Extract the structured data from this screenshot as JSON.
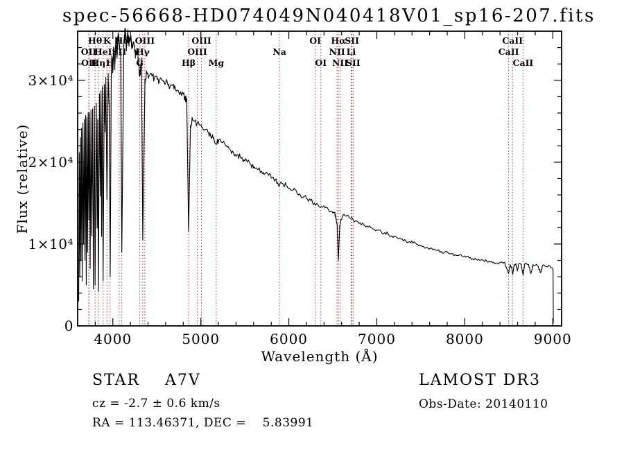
{
  "title": "spec-56668-HD074049N040418V01_sp16-207.fits",
  "x_axis": {
    "label": "Wavelength (Å)",
    "ticks": [
      {
        "value": 4000,
        "label": "4000"
      },
      {
        "value": 5000,
        "label": "5000"
      },
      {
        "value": 6000,
        "label": "6000"
      },
      {
        "value": 7000,
        "label": "7000"
      },
      {
        "value": 8000,
        "label": "8000"
      },
      {
        "value": 9000,
        "label": "9000"
      }
    ]
  },
  "y_axis": {
    "label": "Flux (relative)",
    "ticks": [
      {
        "value": 0,
        "label": "0"
      },
      {
        "value": 10000,
        "label": "1×10⁴"
      },
      {
        "value": 20000,
        "label": "2×10⁴"
      },
      {
        "value": 30000,
        "label": "3×10⁴"
      }
    ]
  },
  "annotations": {
    "classification": "STAR    A7V",
    "cz": "cz = -2.7 ± 0.6 km/s",
    "radec": "RA = 113.46371, DEC =    5.83991",
    "survey": "LAMOST DR3",
    "obs_date": "Obs-Date: 20140110"
  },
  "colors": {
    "spectrum": "#000000",
    "line_marker": "#a03333",
    "text": "#000000",
    "background": "#ffffff"
  },
  "chart_data": {
    "type": "line",
    "title": "spec-56668-HD074049N040418V01_sp16-207.fits",
    "xlabel": "Wavelength (Å)",
    "ylabel": "Flux (relative)",
    "xlim": [
      3600,
      9100
    ],
    "ylim": [
      0,
      36000
    ],
    "x_major_tick_interval": 1000,
    "x_minor_tick_interval": 200,
    "y_major_tick_interval": 10000,
    "y_minor_tick_interval": 2000,
    "grid": false,
    "legend": false,
    "noise_base": 50,
    "noise_fraction": 0.016,
    "spectral_lines": [
      {
        "label": "Hθ",
        "wavelength": 3798,
        "row": 1
      },
      {
        "label": "K",
        "wavelength": 3933,
        "row": 1
      },
      {
        "label": "Hδ",
        "wavelength": 4102,
        "row": 1
      },
      {
        "label": "OIII",
        "wavelength": 4363,
        "row": 1
      },
      {
        "label": "OIII",
        "wavelength": 5007,
        "row": 1
      },
      {
        "label": "OI",
        "wavelength": 6300,
        "row": 1
      },
      {
        "label": "Hα",
        "wavelength": 6563,
        "row": 1
      },
      {
        "label": "SII",
        "wavelength": 6717,
        "row": 1
      },
      {
        "label": "CaII",
        "wavelength": 8542,
        "row": 1
      },
      {
        "label": "OII",
        "wavelength": 3726,
        "row": 2
      },
      {
        "label": "HeI",
        "wavelength": 3889,
        "row": 2
      },
      {
        "label": "SII",
        "wavelength": 4072,
        "row": 2
      },
      {
        "label": "Hγ",
        "wavelength": 4340,
        "row": 2
      },
      {
        "label": "OIII",
        "wavelength": 4959,
        "row": 2
      },
      {
        "label": "Na",
        "wavelength": 5894,
        "row": 2
      },
      {
        "label": "NII",
        "wavelength": 6548,
        "row": 2
      },
      {
        "label": "Li",
        "wavelength": 6708,
        "row": 2
      },
      {
        "label": "CaII",
        "wavelength": 8498,
        "row": 2
      },
      {
        "label": "OII",
        "wavelength": 3729,
        "row": 3
      },
      {
        "label": "Hη",
        "wavelength": 3835,
        "row": 3
      },
      {
        "label": "H",
        "wavelength": 3968,
        "row": 3
      },
      {
        "label": "G",
        "wavelength": 4306,
        "row": 3
      },
      {
        "label": "Hβ",
        "wavelength": 4861,
        "row": 3
      },
      {
        "label": "Mg",
        "wavelength": 5175,
        "row": 3
      },
      {
        "label": "OI",
        "wavelength": 6364,
        "row": 3
      },
      {
        "label": "NII",
        "wavelength": 6583,
        "row": 3
      },
      {
        "label": "SII",
        "wavelength": 6731,
        "row": 3
      },
      {
        "label": "CaII",
        "wavelength": 8662,
        "row": 3
      }
    ],
    "series": [
      {
        "name": "spectrum",
        "points": [
          [
            3612,
            3000
          ],
          [
            3618,
            21000
          ],
          [
            3625,
            6000
          ],
          [
            3631,
            23000
          ],
          [
            3638,
            8000
          ],
          [
            3645,
            24000
          ],
          [
            3652,
            5500
          ],
          [
            3660,
            24500
          ],
          [
            3668,
            10000
          ],
          [
            3676,
            25000
          ],
          [
            3683,
            8000
          ],
          [
            3691,
            25500
          ],
          [
            3698,
            5000
          ],
          [
            3705,
            25500
          ],
          [
            3712,
            9000
          ],
          [
            3720,
            26000
          ],
          [
            3727,
            13000
          ],
          [
            3735,
            26000
          ],
          [
            3742,
            7000
          ],
          [
            3751,
            26200
          ],
          [
            3760,
            11000
          ],
          [
            3770,
            26500
          ],
          [
            3779,
            4500
          ],
          [
            3790,
            26800
          ],
          [
            3798,
            5000
          ],
          [
            3812,
            27000
          ],
          [
            3822,
            12000
          ],
          [
            3828,
            25000
          ],
          [
            3835,
            4200
          ],
          [
            3848,
            28000
          ],
          [
            3858,
            16000
          ],
          [
            3865,
            28500
          ],
          [
            3872,
            11000
          ],
          [
            3880,
            29000
          ],
          [
            3889,
            5500
          ],
          [
            3903,
            29500
          ],
          [
            3912,
            24000
          ],
          [
            3920,
            30000
          ],
          [
            3933,
            15500
          ],
          [
            3947,
            30500
          ],
          [
            3958,
            27000
          ],
          [
            3970,
            6000
          ],
          [
            3982,
            30500
          ],
          [
            3990,
            33000
          ],
          [
            4000,
            31000
          ],
          [
            4010,
            34000
          ],
          [
            4022,
            31500
          ],
          [
            4034,
            35000
          ],
          [
            4048,
            33000
          ],
          [
            4060,
            35800
          ],
          [
            4075,
            34200
          ],
          [
            4088,
            33500
          ],
          [
            4102,
            9000
          ],
          [
            4125,
            34500
          ],
          [
            4140,
            36200
          ],
          [
            4155,
            34000
          ],
          [
            4170,
            35800
          ],
          [
            4185,
            34500
          ],
          [
            4200,
            35500
          ],
          [
            4220,
            34000
          ],
          [
            4240,
            34500
          ],
          [
            4260,
            33000
          ],
          [
            4280,
            33500
          ],
          [
            4306,
            30500
          ],
          [
            4325,
            32500
          ],
          [
            4340,
            10500
          ],
          [
            4365,
            30000
          ],
          [
            4385,
            31000
          ],
          [
            4410,
            30500
          ],
          [
            4440,
            30800
          ],
          [
            4470,
            30200
          ],
          [
            4500,
            30500
          ],
          [
            4530,
            29800
          ],
          [
            4560,
            30000
          ],
          [
            4590,
            29500
          ],
          [
            4620,
            29700
          ],
          [
            4650,
            29200
          ],
          [
            4680,
            29400
          ],
          [
            4710,
            29000
          ],
          [
            4740,
            28800
          ],
          [
            4770,
            28600
          ],
          [
            4800,
            28300
          ],
          [
            4820,
            28000
          ],
          [
            4840,
            27500
          ],
          [
            4861,
            11500
          ],
          [
            4882,
            24500
          ],
          [
            4905,
            25200
          ],
          [
            4930,
            25000
          ],
          [
            4960,
            24800
          ],
          [
            4990,
            24500
          ],
          [
            5020,
            24200
          ],
          [
            5050,
            24000
          ],
          [
            5080,
            23700
          ],
          [
            5110,
            23300
          ],
          [
            5140,
            22900
          ],
          [
            5175,
            22200
          ],
          [
            5210,
            22800
          ],
          [
            5250,
            22400
          ],
          [
            5290,
            22000
          ],
          [
            5330,
            21600
          ],
          [
            5370,
            21200
          ],
          [
            5410,
            20900
          ],
          [
            5450,
            20600
          ],
          [
            5490,
            20300
          ],
          [
            5530,
            20000
          ],
          [
            5570,
            19700
          ],
          [
            5610,
            19400
          ],
          [
            5650,
            19100
          ],
          [
            5690,
            18900
          ],
          [
            5730,
            18600
          ],
          [
            5770,
            18400
          ],
          [
            5810,
            18100
          ],
          [
            5850,
            17900
          ],
          [
            5894,
            17100
          ],
          [
            5930,
            17400
          ],
          [
            5970,
            17100
          ],
          [
            6010,
            16800
          ],
          [
            6050,
            16600
          ],
          [
            6090,
            16300
          ],
          [
            6130,
            16000
          ],
          [
            6170,
            15800
          ],
          [
            6210,
            15500
          ],
          [
            6250,
            15300
          ],
          [
            6290,
            15000
          ],
          [
            6330,
            14800
          ],
          [
            6370,
            14600
          ],
          [
            6410,
            14400
          ],
          [
            6450,
            14200
          ],
          [
            6490,
            14000
          ],
          [
            6520,
            13800
          ],
          [
            6535,
            13200
          ],
          [
            6548,
            12500
          ],
          [
            6563,
            8000
          ],
          [
            6578,
            12200
          ],
          [
            6595,
            13000
          ],
          [
            6615,
            13500
          ],
          [
            6650,
            13400
          ],
          [
            6690,
            13200
          ],
          [
            6730,
            13000
          ],
          [
            6770,
            12800
          ],
          [
            6810,
            12600
          ],
          [
            6850,
            12400
          ],
          [
            6890,
            12200
          ],
          [
            6930,
            12000
          ],
          [
            6970,
            11800
          ],
          [
            7010,
            11700
          ],
          [
            7050,
            11500
          ],
          [
            7090,
            11400
          ],
          [
            7130,
            11200
          ],
          [
            7170,
            11000
          ],
          [
            7210,
            10900
          ],
          [
            7250,
            10700
          ],
          [
            7290,
            10600
          ],
          [
            7330,
            10400
          ],
          [
            7370,
            10300
          ],
          [
            7410,
            10100
          ],
          [
            7450,
            10000
          ],
          [
            7490,
            9900
          ],
          [
            7530,
            9700
          ],
          [
            7570,
            9600
          ],
          [
            7610,
            9500
          ],
          [
            7650,
            9400
          ],
          [
            7690,
            9200
          ],
          [
            7730,
            9100
          ],
          [
            7770,
            9000
          ],
          [
            7810,
            8900
          ],
          [
            7850,
            8800
          ],
          [
            7890,
            8700
          ],
          [
            7930,
            8600
          ],
          [
            7970,
            8500
          ],
          [
            8010,
            8400
          ],
          [
            8050,
            8300
          ],
          [
            8090,
            8200
          ],
          [
            8130,
            8100
          ],
          [
            8170,
            8000
          ],
          [
            8210,
            8000
          ],
          [
            8250,
            7900
          ],
          [
            8290,
            7800
          ],
          [
            8330,
            7750
          ],
          [
            8370,
            7700
          ],
          [
            8420,
            7800
          ],
          [
            8450,
            7750
          ],
          [
            8470,
            7200
          ],
          [
            8498,
            6400
          ],
          [
            8515,
            7500
          ],
          [
            8530,
            7200
          ],
          [
            8545,
            6300
          ],
          [
            8560,
            7500
          ],
          [
            8580,
            7600
          ],
          [
            8598,
            6700
          ],
          [
            8615,
            7600
          ],
          [
            8640,
            7500
          ],
          [
            8662,
            6200
          ],
          [
            8680,
            7500
          ],
          [
            8700,
            7600
          ],
          [
            8725,
            7500
          ],
          [
            8750,
            6400
          ],
          [
            8775,
            7500
          ],
          [
            8800,
            7400
          ],
          [
            8830,
            7300
          ],
          [
            8862,
            6500
          ],
          [
            8885,
            7400
          ],
          [
            8910,
            7300
          ],
          [
            8940,
            7200
          ],
          [
            8970,
            7300
          ],
          [
            8990,
            7100
          ],
          [
            9003,
            6800
          ],
          [
            9006,
            300
          ]
        ]
      }
    ]
  }
}
